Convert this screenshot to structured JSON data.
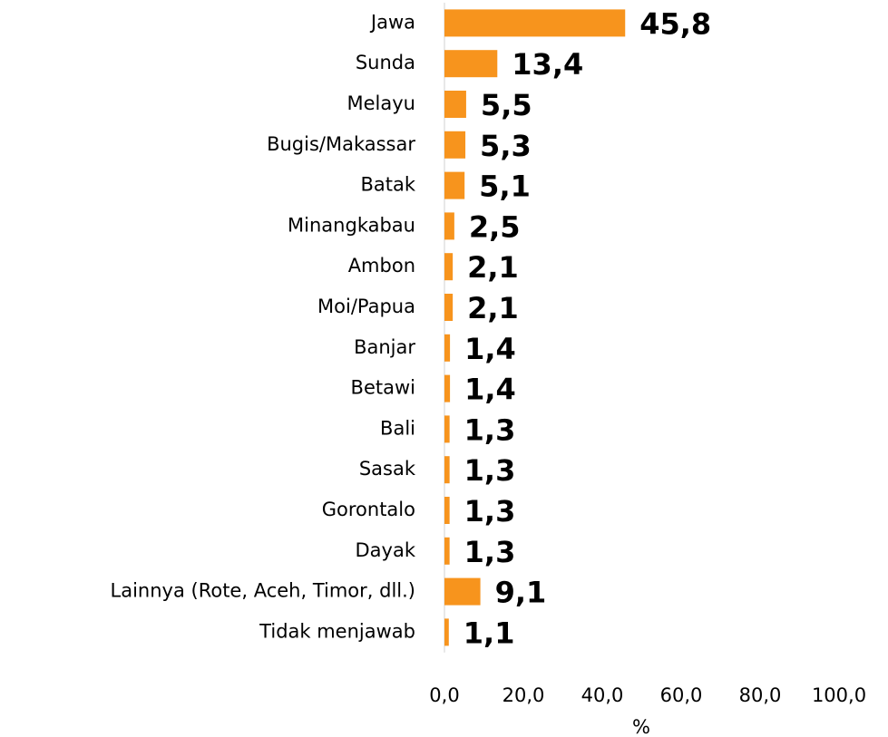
{
  "chart_data": {
    "type": "bar",
    "orientation": "horizontal",
    "categories": [
      "Jawa",
      "Sunda",
      "Melayu",
      "Bugis/Makassar",
      "Batak",
      "Minangkabau",
      "Ambon",
      "Moi/Papua",
      "Banjar",
      "Betawi",
      "Bali",
      "Sasak",
      "Gorontalo",
      "Dayak",
      "Lainnya (Rote, Aceh, Timor, dll.)",
      "Tidak menjawab"
    ],
    "values": [
      45.8,
      13.4,
      5.5,
      5.3,
      5.1,
      2.5,
      2.1,
      2.1,
      1.4,
      1.4,
      1.3,
      1.3,
      1.3,
      1.3,
      9.1,
      1.1
    ],
    "value_labels": [
      "45,8",
      "13,4",
      "5,5",
      "5,3",
      "5,1",
      "2,5",
      "2,1",
      "2,1",
      "1,4",
      "1,4",
      "1,3",
      "1,3",
      "1,3",
      "1,3",
      "9,1",
      "1,1"
    ],
    "color": "#f7941d",
    "x_label": "%",
    "xlim": [
      0,
      100
    ],
    "xticks": [
      {
        "value": 0,
        "label": "0,0"
      },
      {
        "value": 20,
        "label": "20,0"
      },
      {
        "value": 40,
        "label": "40,0"
      },
      {
        "value": 60,
        "label": "60,0"
      },
      {
        "value": 80,
        "label": "80,0"
      },
      {
        "value": 100,
        "label": "100,0"
      }
    ],
    "grid": false
  }
}
